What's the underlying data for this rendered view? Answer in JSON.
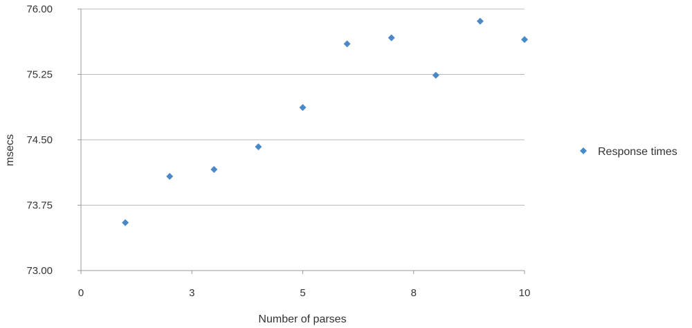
{
  "chart_data": {
    "type": "scatter",
    "title": "",
    "xlabel": "Number of parses",
    "ylabel": "msecs",
    "xlim": [
      0,
      10
    ],
    "ylim": [
      73.0,
      76.0
    ],
    "x_ticks": [
      0,
      2.5,
      5,
      7.5,
      10
    ],
    "x_tick_labels": [
      "0",
      "3",
      "5",
      "8",
      "10"
    ],
    "y_ticks": [
      73.0,
      73.75,
      74.5,
      75.25,
      76.0
    ],
    "y_tick_labels": [
      "73.00",
      "73.75",
      "74.50",
      "75.25",
      "76.00"
    ],
    "grid": "horizontal",
    "legend_position": "right",
    "series": [
      {
        "name": "Response times",
        "marker": "diamond",
        "color": "#4a89c8",
        "x": [
          1,
          2,
          3,
          4,
          5,
          6,
          7,
          8,
          9,
          10
        ],
        "y": [
          73.55,
          74.08,
          74.16,
          74.42,
          74.87,
          75.6,
          75.67,
          75.24,
          75.86,
          75.65
        ]
      }
    ]
  }
}
